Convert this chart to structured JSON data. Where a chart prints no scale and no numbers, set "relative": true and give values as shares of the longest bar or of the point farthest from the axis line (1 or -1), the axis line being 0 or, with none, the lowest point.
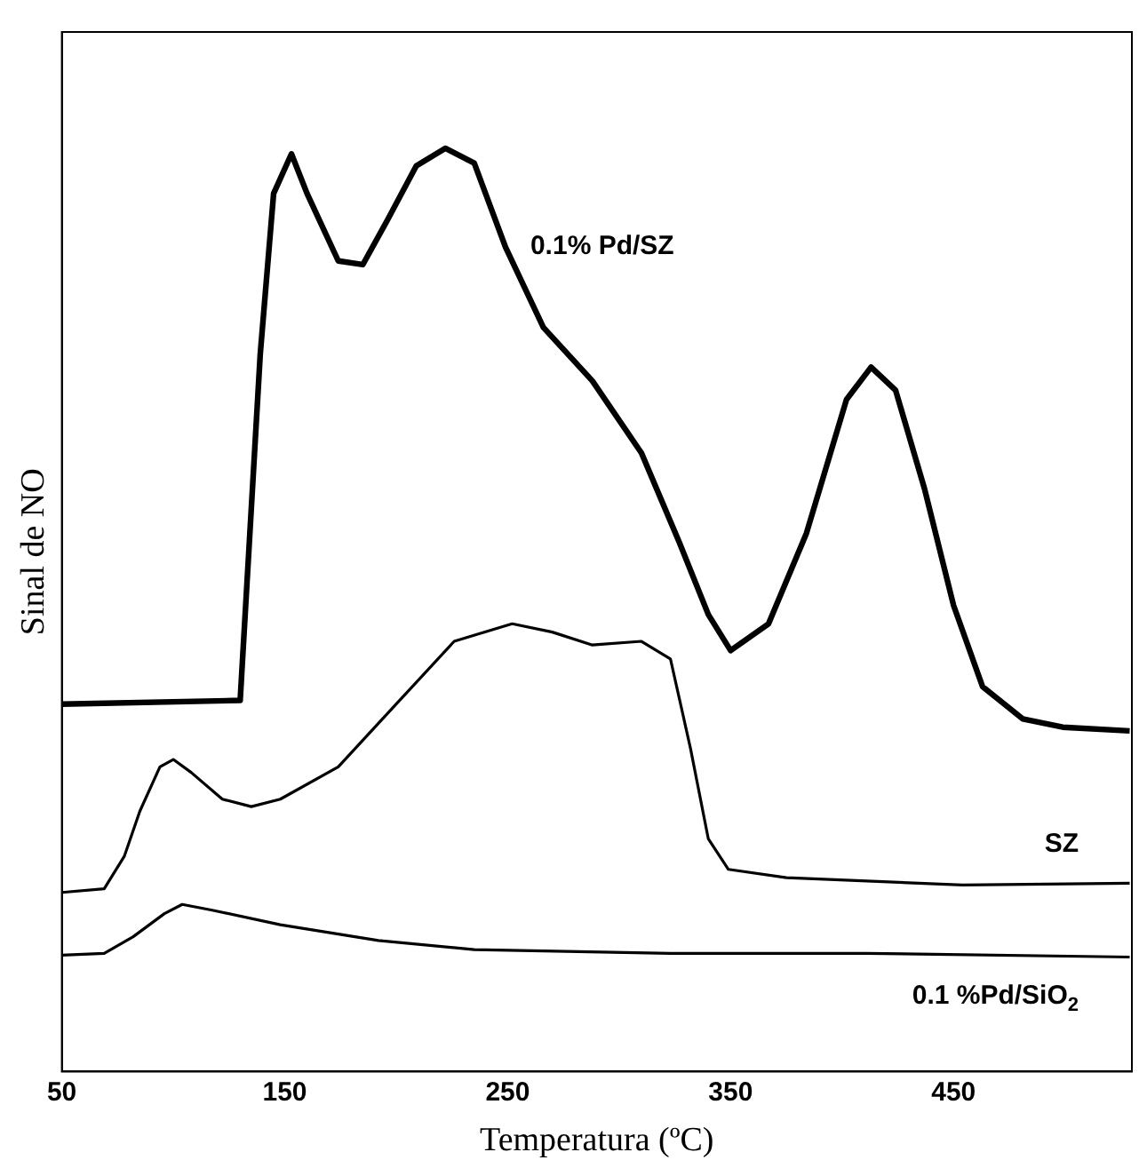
{
  "chart_data": {
    "type": "line",
    "relative": true,
    "xlabel": "Temperatura (ºC)",
    "ylabel": "Sinal de NO",
    "xlim": [
      50,
      530
    ],
    "xticks": [
      50,
      150,
      250,
      350,
      450
    ],
    "grid": false,
    "legend": false,
    "marker": "none",
    "line_style": "solid",
    "series": [
      {
        "name": "0.1% Pd/SZ",
        "color": "#000000",
        "x": [
          50,
          130,
          139,
          145,
          153,
          160,
          174,
          185,
          196,
          209,
          222,
          235,
          249,
          266,
          288,
          310,
          327,
          340,
          350,
          367,
          384,
          402,
          413,
          424,
          437,
          450,
          463,
          481,
          499,
          529
        ],
        "values": [
          0.398,
          0.402,
          0.777,
          0.951,
          0.994,
          0.951,
          0.878,
          0.874,
          0.922,
          0.981,
          1.0,
          0.984,
          0.893,
          0.806,
          0.748,
          0.67,
          0.573,
          0.495,
          0.456,
          0.485,
          0.583,
          0.728,
          0.763,
          0.738,
          0.631,
          0.505,
          0.417,
          0.382,
          0.373,
          0.369
        ]
      },
      {
        "name": "SZ",
        "color": "#000000",
        "x": [
          50,
          69,
          78,
          85,
          94,
          100,
          108,
          122,
          135,
          148,
          174,
          200,
          226,
          252,
          270,
          288,
          310,
          323,
          332,
          340,
          349,
          375,
          454,
          529
        ],
        "values": [
          0.194,
          0.198,
          0.233,
          0.282,
          0.33,
          0.338,
          0.324,
          0.295,
          0.287,
          0.295,
          0.33,
          0.398,
          0.466,
          0.485,
          0.476,
          0.462,
          0.466,
          0.447,
          0.35,
          0.252,
          0.219,
          0.21,
          0.202,
          0.204
        ]
      },
      {
        "name": "0.1 %Pd/SiO$_{2}$",
        "color": "#000000",
        "x": [
          50,
          69,
          82,
          96,
          104,
          117,
          148,
          192,
          235,
          323,
          411,
          529
        ],
        "values": [
          0.126,
          0.128,
          0.146,
          0.171,
          0.181,
          0.175,
          0.159,
          0.142,
          0.132,
          0.128,
          0.128,
          0.124
        ]
      }
    ]
  }
}
